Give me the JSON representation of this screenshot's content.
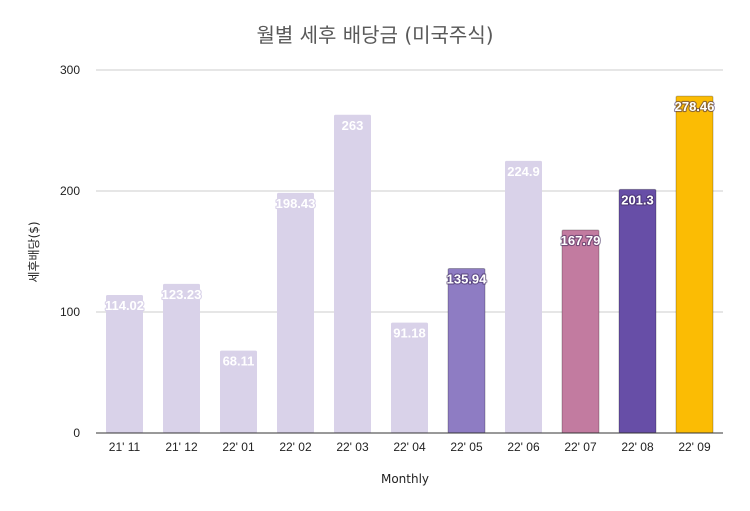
{
  "chart_data": {
    "type": "bar",
    "title": "월별 세후 배당금 (미국주식)",
    "xlabel": "Monthly",
    "ylabel": "세후배당($)",
    "ylim": [
      0,
      300
    ],
    "yticks": [
      "0",
      "100",
      "200",
      "300"
    ],
    "grid": true,
    "categories": [
      "21' 11",
      "21' 12",
      "22' 01",
      "22' 02",
      "22' 03",
      "22' 04",
      "22' 05",
      "22' 06",
      "22' 07",
      "22' 08",
      "22' 09"
    ],
    "values": [
      114.02,
      123.23,
      68.11,
      198.43,
      263,
      91.18,
      135.94,
      224.9,
      167.79,
      201.3,
      278.46
    ],
    "labels": [
      "114.02",
      "123.23",
      "68.11",
      "198.43",
      "263",
      "91.18",
      "135.94",
      "224.9",
      "167.79",
      "201.3",
      "278.46"
    ],
    "colors": [
      "#d9d2e9",
      "#d9d2e9",
      "#d9d2e9",
      "#d9d2e9",
      "#d9d2e9",
      "#d9d2e9",
      "#8e7cc3",
      "#d9d2e9",
      "#c27ba0",
      "#674ea7",
      "#fbbc04"
    ],
    "gridline_color": "#cccccc",
    "axis_color": "#333333"
  }
}
